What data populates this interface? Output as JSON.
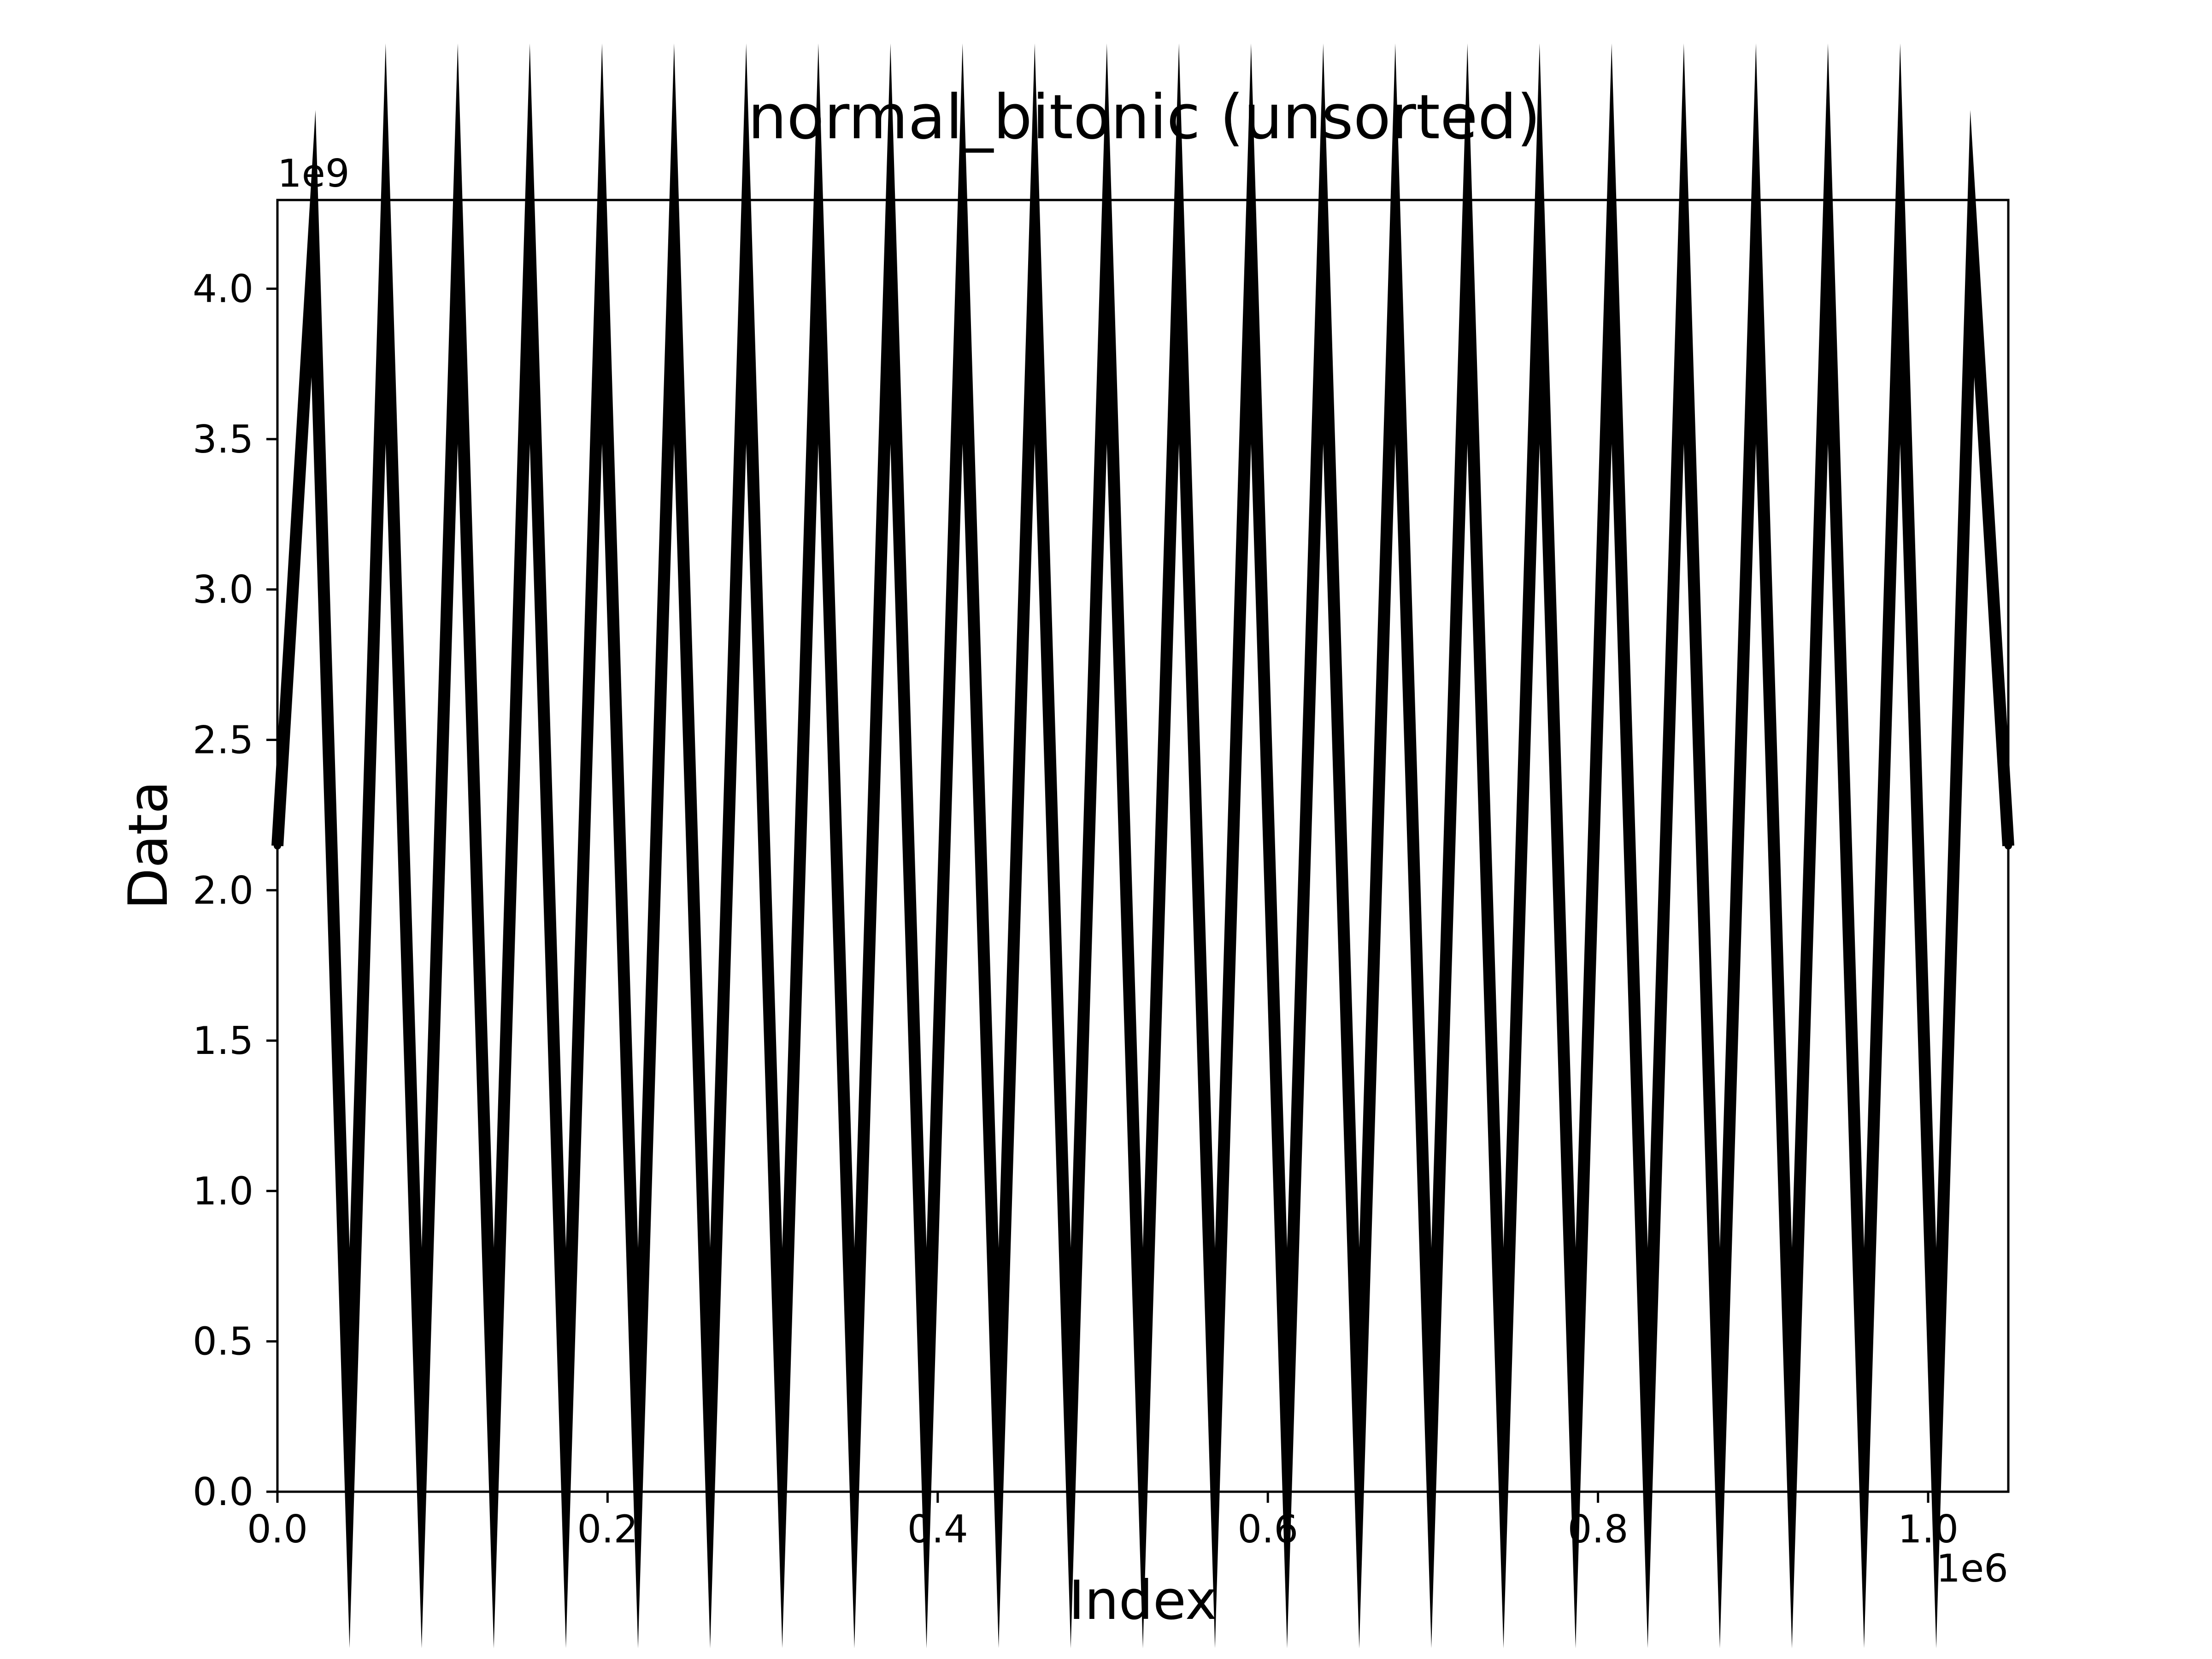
{
  "chart_data": {
    "type": "scatter",
    "title": "normal_bitonic (unsorted)",
    "xlabel": "Index",
    "ylabel": "Data",
    "x_offset_label": "1e6",
    "y_offset_label": "1e9",
    "xlim": [
      0,
      1048576
    ],
    "ylim": [
      0,
      4294967295
    ],
    "x_ticks": [
      {
        "value": 0,
        "label": "0.0"
      },
      {
        "value": 200000,
        "label": "0.2"
      },
      {
        "value": 400000,
        "label": "0.4"
      },
      {
        "value": 600000,
        "label": "0.6"
      },
      {
        "value": 800000,
        "label": "0.8"
      },
      {
        "value": 1000000,
        "label": "1.0"
      }
    ],
    "y_ticks": [
      {
        "value": 0,
        "label": "0.0"
      },
      {
        "value": 500000000,
        "label": "0.5"
      },
      {
        "value": 1000000000,
        "label": "1.0"
      },
      {
        "value": 1500000000,
        "label": "1.5"
      },
      {
        "value": 2000000000,
        "label": "2.0"
      },
      {
        "value": 2500000000,
        "label": "2.5"
      },
      {
        "value": 3000000000,
        "label": "3.0"
      },
      {
        "value": 3500000000,
        "label": "3.5"
      },
      {
        "value": 4000000000,
        "label": "4.0"
      }
    ],
    "grid": false,
    "legend": "none",
    "marker_color": "#000000",
    "series": [
      {
        "x": [
          0,
          21845,
          43691,
          65536,
          87381,
          109227,
          131072,
          152917,
          174763,
          196608,
          218453,
          240299,
          262144,
          283989,
          305835,
          327680,
          349525,
          371371,
          393216,
          415061,
          436907,
          458752,
          480597,
          502443,
          524288,
          546133,
          567979,
          589824,
          611669,
          633515,
          655360,
          677205,
          699051,
          720896,
          742741,
          764587,
          786432,
          808277,
          830123,
          851968,
          873813,
          895659,
          917504,
          939349,
          961195,
          983040,
          1004885,
          1026731,
          1048576
        ],
        "y": [
          2147483648,
          4150000000,
          145000000,
          4150000000,
          145000000,
          4150000000,
          145000000,
          4150000000,
          145000000,
          4150000000,
          145000000,
          4150000000,
          145000000,
          4150000000,
          145000000,
          4150000000,
          145000000,
          4150000000,
          145000000,
          4150000000,
          145000000,
          4150000000,
          145000000,
          4150000000,
          145000000,
          4150000000,
          145000000,
          4150000000,
          145000000,
          4150000000,
          145000000,
          4150000000,
          145000000,
          4150000000,
          145000000,
          4150000000,
          145000000,
          4150000000,
          145000000,
          4150000000,
          145000000,
          4150000000,
          145000000,
          4150000000,
          145000000,
          4150000000,
          145000000,
          4150000000,
          2147483648
        ]
      }
    ]
  }
}
